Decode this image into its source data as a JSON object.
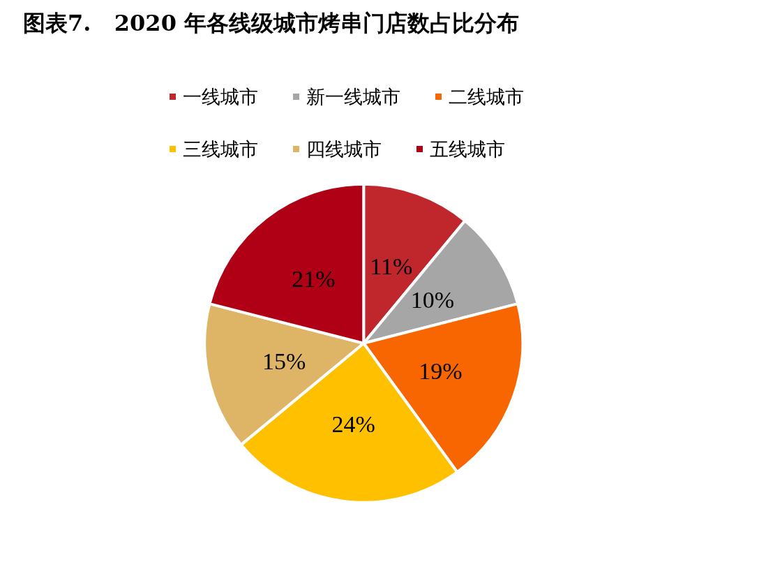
{
  "chart_data": {
    "type": "pie",
    "title": "图表7.   2020 年各线级城市烤串门店数占比分布",
    "categories": [
      "一线城市",
      "新一线城市",
      "二线城市",
      "三线城市",
      "四线城市",
      "五线城市"
    ],
    "values": [
      11,
      10,
      19,
      24,
      15,
      21
    ],
    "colors": [
      "#c0272d",
      "#a6a6a6",
      "#f76600",
      "#ffc000",
      "#deb467",
      "#b00016"
    ],
    "value_labels": [
      "11%",
      "10%",
      "19%",
      "24%",
      "15%",
      "21%"
    ],
    "legend": "top"
  }
}
